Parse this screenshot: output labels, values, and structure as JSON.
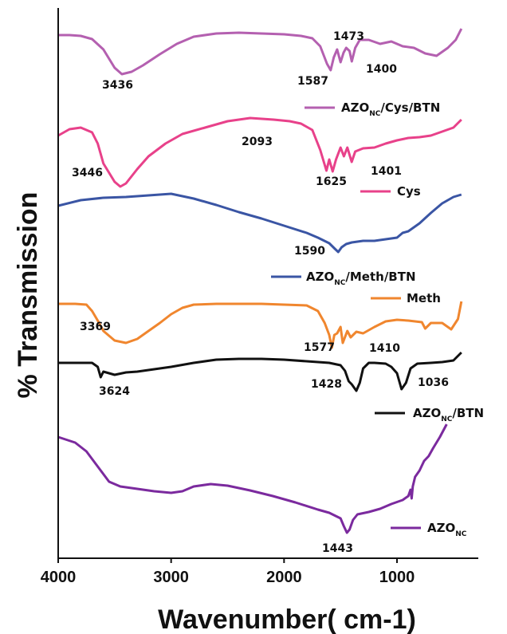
{
  "chart_data": {
    "type": "line",
    "title": "",
    "xlabel": "Wavenumber( cm-1)",
    "ylabel": "% Transmission",
    "xlim": [
      4000,
      400
    ],
    "x_ticks": [
      "4000",
      "3000",
      "2000",
      "1000"
    ],
    "x_reversed": true,
    "y_units": "arbitrary (stacked spectra)",
    "grid": false,
    "series": [
      {
        "name": "AZONC/Cys/BTN",
        "legend_main": "AZO",
        "legend_sub": "NC",
        "legend_tail": "/Cys/BTN",
        "color": "#b460b0",
        "points": [
          [
            4000,
            44
          ],
          [
            3900,
            44
          ],
          [
            3800,
            45
          ],
          [
            3700,
            49
          ],
          [
            3600,
            62
          ],
          [
            3500,
            85
          ],
          [
            3436,
            93
          ],
          [
            3350,
            90
          ],
          [
            3250,
            82
          ],
          [
            3100,
            68
          ],
          [
            2950,
            55
          ],
          [
            2800,
            46
          ],
          [
            2600,
            42
          ],
          [
            2400,
            41
          ],
          [
            2200,
            42
          ],
          [
            2000,
            43
          ],
          [
            1850,
            45
          ],
          [
            1750,
            48
          ],
          [
            1680,
            58
          ],
          [
            1620,
            80
          ],
          [
            1587,
            88
          ],
          [
            1560,
            72
          ],
          [
            1530,
            62
          ],
          [
            1500,
            78
          ],
          [
            1473,
            66
          ],
          [
            1450,
            60
          ],
          [
            1420,
            64
          ],
          [
            1400,
            77
          ],
          [
            1370,
            60
          ],
          [
            1330,
            50
          ],
          [
            1250,
            50
          ],
          [
            1150,
            55
          ],
          [
            1050,
            52
          ],
          [
            950,
            58
          ],
          [
            850,
            60
          ],
          [
            750,
            67
          ],
          [
            650,
            70
          ],
          [
            550,
            60
          ],
          [
            480,
            50
          ],
          [
            430,
            36
          ]
        ],
        "annotations": [
          {
            "x": 3436,
            "label": "3436"
          },
          {
            "x": 1587,
            "label": "1587"
          },
          {
            "x": 1473,
            "label": "1473"
          },
          {
            "x": 1400,
            "label": "1400"
          }
        ]
      },
      {
        "name": "Cys",
        "legend_main": "Cys",
        "legend_sub": "",
        "legend_tail": "",
        "color": "#e8418a",
        "points": [
          [
            4000,
            170
          ],
          [
            3900,
            162
          ],
          [
            3800,
            160
          ],
          [
            3700,
            166
          ],
          [
            3650,
            180
          ],
          [
            3600,
            205
          ],
          [
            3500,
            228
          ],
          [
            3450,
            234
          ],
          [
            3400,
            230
          ],
          [
            3300,
            212
          ],
          [
            3200,
            196
          ],
          [
            3050,
            180
          ],
          [
            2900,
            168
          ],
          [
            2700,
            160
          ],
          [
            2500,
            152
          ],
          [
            2300,
            148
          ],
          [
            2093,
            150
          ],
          [
            1950,
            152
          ],
          [
            1850,
            155
          ],
          [
            1750,
            163
          ],
          [
            1680,
            188
          ],
          [
            1625,
            214
          ],
          [
            1600,
            200
          ],
          [
            1570,
            215
          ],
          [
            1540,
            200
          ],
          [
            1500,
            185
          ],
          [
            1470,
            196
          ],
          [
            1440,
            185
          ],
          [
            1401,
            203
          ],
          [
            1370,
            190
          ],
          [
            1300,
            186
          ],
          [
            1200,
            185
          ],
          [
            1100,
            180
          ],
          [
            1000,
            176
          ],
          [
            900,
            173
          ],
          [
            800,
            172
          ],
          [
            700,
            170
          ],
          [
            600,
            165
          ],
          [
            500,
            160
          ],
          [
            430,
            150
          ]
        ],
        "annotations": [
          {
            "x": 3446,
            "label": "3446"
          },
          {
            "x": 2093,
            "label": "2093"
          },
          {
            "x": 1625,
            "label": "1625"
          },
          {
            "x": 1401,
            "label": "1401"
          }
        ]
      },
      {
        "name": "AZONC/Meth/BTN",
        "legend_main": "AZO",
        "legend_sub": "NC",
        "legend_tail": "/Meth/BTN",
        "color": "#3a55a4",
        "points": [
          [
            4000,
            258
          ],
          [
            3800,
            251
          ],
          [
            3600,
            248
          ],
          [
            3400,
            247
          ],
          [
            3200,
            245
          ],
          [
            3000,
            243
          ],
          [
            2800,
            249
          ],
          [
            2600,
            257
          ],
          [
            2400,
            266
          ],
          [
            2200,
            274
          ],
          [
            2000,
            283
          ],
          [
            1800,
            292
          ],
          [
            1700,
            298
          ],
          [
            1600,
            305
          ],
          [
            1550,
            312
          ],
          [
            1520,
            316
          ],
          [
            1490,
            310
          ],
          [
            1450,
            306
          ],
          [
            1400,
            304
          ],
          [
            1300,
            302
          ],
          [
            1200,
            302
          ],
          [
            1100,
            300
          ],
          [
            1000,
            298
          ],
          [
            950,
            292
          ],
          [
            900,
            290
          ],
          [
            800,
            280
          ],
          [
            700,
            267
          ],
          [
            600,
            255
          ],
          [
            500,
            247
          ],
          [
            430,
            244
          ]
        ],
        "annotations": [
          {
            "x": 1590,
            "label": "1590"
          }
        ]
      },
      {
        "name": "Meth",
        "legend_main": "Meth",
        "legend_sub": "",
        "legend_tail": "",
        "color": "#f0862e",
        "points": [
          [
            4000,
            381
          ],
          [
            3850,
            381
          ],
          [
            3750,
            382
          ],
          [
            3700,
            390
          ],
          [
            3650,
            402
          ],
          [
            3600,
            415
          ],
          [
            3500,
            427
          ],
          [
            3400,
            430
          ],
          [
            3300,
            425
          ],
          [
            3200,
            415
          ],
          [
            3100,
            405
          ],
          [
            3000,
            394
          ],
          [
            2900,
            386
          ],
          [
            2800,
            382
          ],
          [
            2600,
            381
          ],
          [
            2400,
            381
          ],
          [
            2200,
            381
          ],
          [
            2000,
            382
          ],
          [
            1800,
            383
          ],
          [
            1700,
            390
          ],
          [
            1640,
            405
          ],
          [
            1600,
            420
          ],
          [
            1577,
            436
          ],
          [
            1555,
            420
          ],
          [
            1530,
            418
          ],
          [
            1500,
            410
          ],
          [
            1480,
            430
          ],
          [
            1440,
            415
          ],
          [
            1410,
            423
          ],
          [
            1360,
            416
          ],
          [
            1300,
            418
          ],
          [
            1200,
            410
          ],
          [
            1100,
            403
          ],
          [
            1000,
            401
          ],
          [
            900,
            402
          ],
          [
            780,
            404
          ],
          [
            750,
            412
          ],
          [
            700,
            405
          ],
          [
            600,
            405
          ],
          [
            520,
            413
          ],
          [
            460,
            400
          ],
          [
            430,
            378
          ]
        ],
        "annotations": [
          {
            "x": 3369,
            "label": "3369"
          },
          {
            "x": 1577,
            "label": "1577"
          },
          {
            "x": 1410,
            "label": "1410"
          }
        ]
      },
      {
        "name": "AZONC/BTN",
        "legend_main": "AZO",
        "legend_sub": "NC",
        "legend_tail": "/BTN",
        "color": "#111111",
        "points": [
          [
            4000,
            455
          ],
          [
            3800,
            455
          ],
          [
            3700,
            455
          ],
          [
            3650,
            460
          ],
          [
            3624,
            473
          ],
          [
            3600,
            466
          ],
          [
            3500,
            470
          ],
          [
            3400,
            467
          ],
          [
            3300,
            466
          ],
          [
            3200,
            464
          ],
          [
            3000,
            460
          ],
          [
            2800,
            455
          ],
          [
            2600,
            451
          ],
          [
            2400,
            450
          ],
          [
            2200,
            450
          ],
          [
            2000,
            451
          ],
          [
            1800,
            453
          ],
          [
            1600,
            455
          ],
          [
            1500,
            458
          ],
          [
            1460,
            465
          ],
          [
            1428,
            478
          ],
          [
            1400,
            482
          ],
          [
            1360,
            490
          ],
          [
            1330,
            480
          ],
          [
            1300,
            462
          ],
          [
            1250,
            455
          ],
          [
            1200,
            455
          ],
          [
            1100,
            456
          ],
          [
            1050,
            460
          ],
          [
            1000,
            468
          ],
          [
            960,
            488
          ],
          [
            920,
            480
          ],
          [
            880,
            462
          ],
          [
            820,
            456
          ],
          [
            700,
            455
          ],
          [
            600,
            454
          ],
          [
            500,
            452
          ],
          [
            430,
            442
          ]
        ],
        "annotations": [
          {
            "x": 3624,
            "label": "3624"
          },
          {
            "x": 1428,
            "label": "1428"
          },
          {
            "x": 1036,
            "label": "1036"
          }
        ]
      },
      {
        "name": "AZONC",
        "legend_main": "AZO",
        "legend_sub": "NC",
        "legend_tail": "",
        "color": "#7b2a9e",
        "points": [
          [
            4000,
            548
          ],
          [
            3850,
            555
          ],
          [
            3750,
            566
          ],
          [
            3650,
            585
          ],
          [
            3550,
            604
          ],
          [
            3450,
            610
          ],
          [
            3300,
            613
          ],
          [
            3150,
            616
          ],
          [
            3000,
            618
          ],
          [
            2900,
            616
          ],
          [
            2800,
            610
          ],
          [
            2650,
            607
          ],
          [
            2500,
            609
          ],
          [
            2300,
            615
          ],
          [
            2100,
            622
          ],
          [
            1900,
            630
          ],
          [
            1700,
            639
          ],
          [
            1600,
            643
          ],
          [
            1500,
            650
          ],
          [
            1470,
            660
          ],
          [
            1443,
            668
          ],
          [
            1420,
            664
          ],
          [
            1390,
            652
          ],
          [
            1350,
            645
          ],
          [
            1250,
            642
          ],
          [
            1150,
            638
          ],
          [
            1050,
            632
          ],
          [
            950,
            627
          ],
          [
            900,
            622
          ],
          [
            880,
            614
          ],
          [
            870,
            625
          ],
          [
            860,
            610
          ],
          [
            840,
            598
          ],
          [
            800,
            590
          ],
          [
            760,
            578
          ],
          [
            720,
            572
          ],
          [
            680,
            562
          ],
          [
            620,
            548
          ],
          [
            560,
            532
          ]
        ],
        "annotations": [
          {
            "x": 1443,
            "label": "1443"
          }
        ]
      }
    ]
  }
}
